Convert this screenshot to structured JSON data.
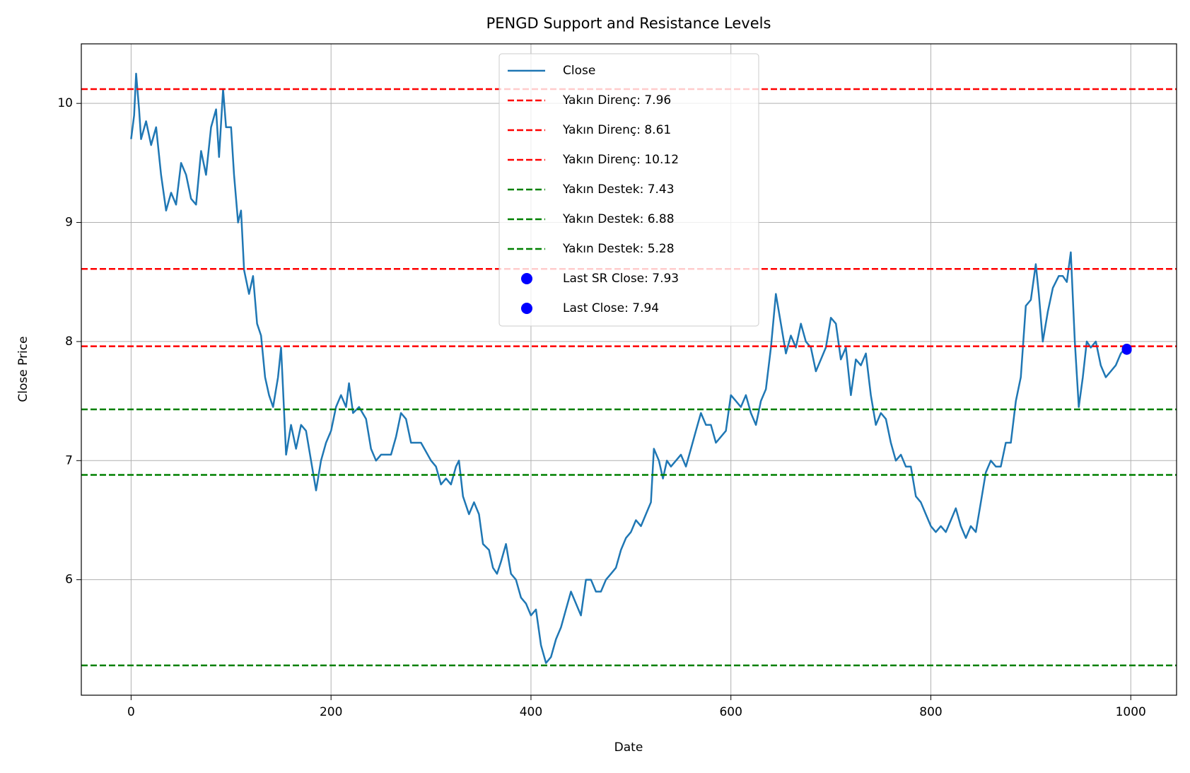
{
  "chart_data": {
    "type": "line",
    "title": "PENGD Support and Resistance Levels",
    "x_label": "Date",
    "y_label": "Close Price",
    "xlim": [
      -49.8,
      1045.8
    ],
    "ylim": [
      5.03,
      10.5
    ],
    "xticks": [
      0,
      200,
      400,
      600,
      800,
      1000
    ],
    "yticks": [
      6,
      7,
      8,
      9,
      10
    ],
    "grid": true,
    "legend": "upper center",
    "series": [
      {
        "name": "Close",
        "type": "line",
        "color": "#1f77b4",
        "x": [
          0,
          3,
          5,
          8,
          10,
          15,
          20,
          25,
          30,
          35,
          40,
          45,
          50,
          55,
          60,
          65,
          70,
          75,
          80,
          85,
          88,
          92,
          95,
          100,
          103,
          107,
          110,
          113,
          118,
          122,
          126,
          130,
          134,
          138,
          142,
          147,
          150,
          152,
          155,
          160,
          165,
          170,
          175,
          180,
          185,
          190,
          195,
          200,
          205,
          210,
          215,
          218,
          222,
          228,
          235,
          240,
          245,
          250,
          260,
          265,
          270,
          275,
          280,
          290,
          300,
          305,
          310,
          315,
          320,
          325,
          328,
          332,
          338,
          343,
          348,
          352,
          358,
          362,
          366,
          370,
          375,
          380,
          385,
          390,
          395,
          400,
          405,
          410,
          415,
          420,
          425,
          430,
          435,
          440,
          445,
          450,
          455,
          460,
          465,
          470,
          475,
          480,
          485,
          490,
          495,
          500,
          505,
          510,
          515,
          520,
          523,
          528,
          532,
          536,
          540,
          545,
          550,
          555,
          560,
          565,
          570,
          575,
          580,
          585,
          590,
          595,
          600,
          605,
          610,
          615,
          620,
          625,
          630,
          635,
          640,
          645,
          650,
          655,
          660,
          665,
          670,
          675,
          680,
          685,
          690,
          695,
          700,
          705,
          710,
          715,
          720,
          725,
          730,
          735,
          740,
          745,
          750,
          755,
          760,
          765,
          770,
          775,
          780,
          785,
          790,
          795,
          800,
          805,
          810,
          815,
          820,
          825,
          830,
          835,
          840,
          845,
          850,
          855,
          860,
          865,
          870,
          875,
          880,
          885,
          890,
          895,
          900,
          905,
          908,
          912,
          917,
          922,
          928,
          932,
          936,
          940,
          944,
          948,
          952,
          956,
          960,
          965,
          970,
          975,
          980,
          985,
          990,
          995,
          996
        ],
        "values": [
          9.7,
          9.9,
          10.25,
          9.95,
          9.7,
          9.85,
          9.65,
          9.8,
          9.4,
          9.1,
          9.25,
          9.15,
          9.5,
          9.4,
          9.2,
          9.15,
          9.6,
          9.4,
          9.8,
          9.95,
          9.55,
          10.12,
          9.8,
          9.8,
          9.4,
          9.0,
          9.1,
          8.6,
          8.4,
          8.55,
          8.15,
          8.05,
          7.7,
          7.55,
          7.45,
          7.7,
          7.95,
          7.6,
          7.05,
          7.3,
          7.1,
          7.3,
          7.25,
          7.0,
          6.75,
          7.0,
          7.15,
          7.25,
          7.45,
          7.55,
          7.45,
          7.65,
          7.4,
          7.45,
          7.35,
          7.1,
          7.0,
          7.05,
          7.05,
          7.2,
          7.4,
          7.35,
          7.15,
          7.15,
          7.0,
          6.95,
          6.8,
          6.85,
          6.8,
          6.95,
          7.0,
          6.7,
          6.55,
          6.65,
          6.55,
          6.3,
          6.25,
          6.1,
          6.05,
          6.15,
          6.3,
          6.05,
          6.0,
          5.85,
          5.8,
          5.7,
          5.75,
          5.45,
          5.3,
          5.35,
          5.5,
          5.6,
          5.75,
          5.9,
          5.8,
          5.7,
          6.0,
          6.0,
          5.9,
          5.9,
          6.0,
          6.05,
          6.1,
          6.25,
          6.35,
          6.4,
          6.5,
          6.45,
          6.55,
          6.65,
          7.1,
          7.0,
          6.85,
          7.0,
          6.95,
          7.0,
          7.05,
          6.95,
          7.1,
          7.25,
          7.4,
          7.3,
          7.3,
          7.15,
          7.2,
          7.25,
          7.55,
          7.5,
          7.45,
          7.55,
          7.4,
          7.3,
          7.5,
          7.6,
          7.95,
          8.4,
          8.15,
          7.9,
          8.05,
          7.95,
          8.15,
          8.0,
          7.95,
          7.75,
          7.85,
          7.95,
          8.2,
          8.15,
          7.85,
          7.95,
          7.55,
          7.85,
          7.8,
          7.9,
          7.55,
          7.3,
          7.4,
          7.35,
          7.15,
          7.0,
          7.05,
          6.95,
          6.95,
          6.7,
          6.65,
          6.55,
          6.45,
          6.4,
          6.45,
          6.4,
          6.5,
          6.6,
          6.45,
          6.35,
          6.45,
          6.4,
          6.65,
          6.9,
          7.0,
          6.95,
          6.95,
          7.15,
          7.15,
          7.5,
          7.7,
          8.3,
          8.35,
          8.65,
          8.4,
          8.0,
          8.25,
          8.45,
          8.55,
          8.55,
          8.5,
          8.75,
          8.0,
          7.45,
          7.7,
          8.0,
          7.95,
          8.0,
          7.8,
          7.7,
          7.75,
          7.8,
          7.9,
          7.95,
          7.94
        ]
      },
      {
        "name": "Yakın Direnç: 7.96",
        "type": "hline",
        "color": "#ff0000",
        "values": [
          7.96
        ]
      },
      {
        "name": "Yakın Direnç: 8.61",
        "type": "hline",
        "color": "#ff0000",
        "values": [
          8.61
        ]
      },
      {
        "name": "Yakın Direnç: 10.12",
        "type": "hline",
        "color": "#ff0000",
        "values": [
          10.12
        ]
      },
      {
        "name": "Yakın Destek: 7.43",
        "type": "hline",
        "color": "#008000",
        "values": [
          7.43
        ]
      },
      {
        "name": "Yakın Destek: 6.88",
        "type": "hline",
        "color": "#008000",
        "values": [
          6.88
        ]
      },
      {
        "name": "Yakın Destek: 5.28",
        "type": "hline",
        "color": "#008000",
        "values": [
          5.28
        ]
      },
      {
        "name": "Last SR Close: 7.93",
        "type": "scatter",
        "color": "#0000ff",
        "x": [
          996
        ],
        "values": [
          7.93
        ]
      },
      {
        "name": "Last Close: 7.94",
        "type": "scatter",
        "color": "#0000ff",
        "x": [
          996
        ],
        "values": [
          7.94
        ]
      }
    ]
  }
}
